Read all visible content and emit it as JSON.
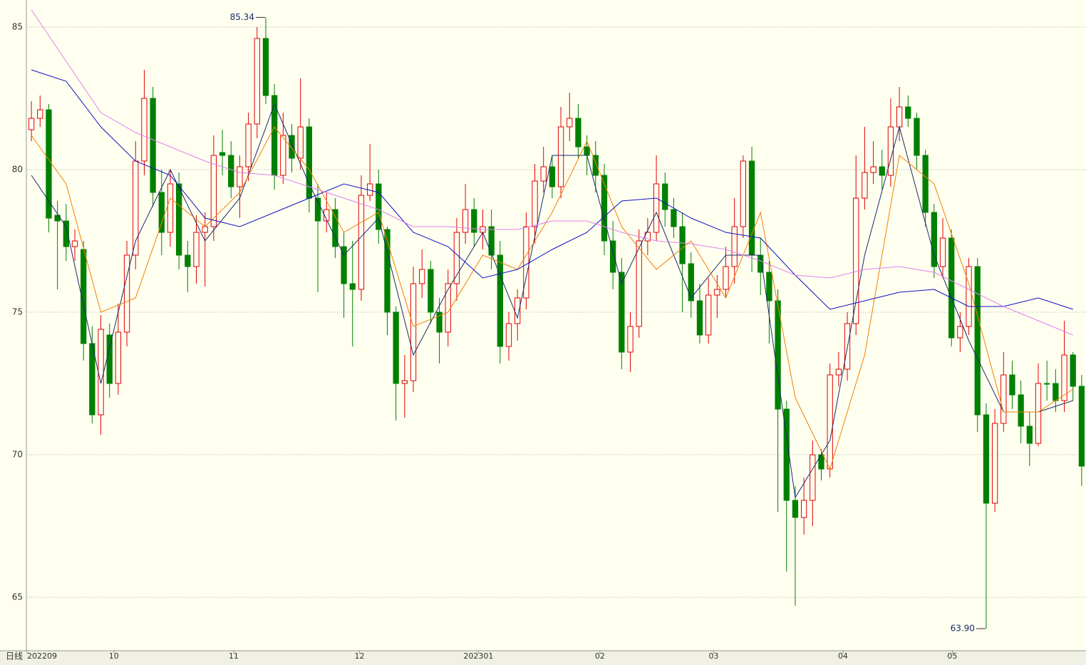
{
  "chart_data": {
    "type": "candlestick",
    "period_label": "日线",
    "open": [
      81.4,
      81.8,
      82.1,
      78.4,
      78.2,
      77.3,
      77.2,
      73.9,
      71.4,
      74.2,
      72.5,
      74.3,
      77.0,
      80.3,
      82.5,
      79.2,
      77.8,
      79.5,
      77.0,
      76.6,
      77.8,
      78.0,
      80.6,
      80.5,
      79.4,
      80.1,
      81.6,
      84.6,
      82.6,
      79.8,
      81.2,
      80.4,
      81.5,
      79.0,
      78.2,
      78.6,
      77.3,
      76.0,
      75.8,
      79.1,
      79.5,
      77.9,
      75.0,
      72.5,
      72.6,
      76.0,
      76.5,
      75.0,
      74.3,
      76.0,
      77.8,
      78.6,
      77.8,
      78.0,
      77.0,
      73.8,
      74.6,
      75.5,
      78.0,
      79.6,
      80.1,
      79.4,
      81.5,
      81.8,
      80.8,
      80.5,
      79.8,
      77.5,
      76.4,
      73.6,
      74.5,
      77.5,
      77.8,
      79.5,
      78.6,
      78.0,
      76.7,
      75.4,
      74.2,
      75.6,
      75.8,
      76.6,
      78.0,
      80.3,
      77.0,
      76.4,
      75.4,
      71.6,
      68.4,
      67.8,
      68.4,
      70.0,
      69.5,
      72.8,
      73.0,
      74.6,
      79.0,
      79.9,
      80.1,
      79.8,
      81.5,
      82.2,
      81.8,
      80.5,
      78.5,
      76.6,
      77.6,
      74.1,
      74.5,
      76.6,
      71.4,
      68.3,
      71.1,
      72.8,
      72.1,
      71.0,
      70.4,
      72.5,
      72.5,
      71.9,
      73.5,
      72.4
    ],
    "high": [
      82.4,
      82.6,
      82.3,
      78.9,
      78.8,
      77.9,
      77.5,
      74.5,
      74.9,
      74.6,
      75.3,
      77.5,
      81.0,
      83.5,
      82.9,
      80.0,
      80.0,
      79.9,
      77.5,
      78.4,
      78.5,
      81.2,
      81.4,
      81.0,
      80.5,
      82.0,
      85.0,
      85.34,
      83.0,
      82.0,
      81.6,
      83.2,
      81.8,
      79.5,
      79.2,
      79.0,
      77.8,
      77.5,
      79.8,
      80.9,
      80.0,
      78.0,
      75.2,
      73.5,
      76.6,
      77.2,
      76.8,
      75.5,
      76.5,
      78.3,
      79.5,
      79.0,
      78.6,
      78.6,
      77.5,
      75.0,
      75.8,
      78.5,
      80.2,
      80.8,
      80.5,
      82.2,
      82.7,
      82.3,
      81.2,
      81.0,
      80.2,
      78.2,
      76.9,
      75.0,
      77.9,
      78.3,
      80.5,
      79.9,
      79.0,
      78.5,
      77.1,
      76.0,
      76.2,
      76.3,
      77.3,
      79.0,
      80.5,
      80.8,
      77.6,
      76.8,
      75.8,
      71.9,
      68.9,
      69.2,
      70.5,
      70.2,
      73.2,
      73.6,
      75.0,
      80.5,
      81.5,
      81.0,
      80.7,
      82.5,
      82.9,
      82.6,
      82.0,
      80.7,
      78.8,
      78.3,
      77.9,
      75.0,
      76.9,
      76.9,
      71.8,
      71.6,
      73.6,
      73.3,
      72.6,
      71.5,
      73.2,
      73.3,
      73.0,
      74.7,
      73.6,
      72.8
    ],
    "low": [
      81.0,
      81.5,
      77.8,
      75.8,
      76.8,
      76.8,
      73.3,
      71.1,
      70.7,
      72.0,
      72.1,
      73.8,
      76.5,
      79.8,
      78.7,
      77.0,
      77.3,
      76.5,
      75.7,
      76.0,
      75.9,
      77.5,
      79.8,
      79.0,
      78.3,
      79.6,
      81.1,
      82.3,
      79.3,
      79.5,
      79.9,
      80.0,
      78.5,
      75.7,
      77.8,
      76.9,
      74.8,
      73.8,
      75.4,
      78.9,
      77.4,
      74.2,
      71.2,
      71.3,
      72.2,
      75.5,
      74.6,
      73.2,
      73.8,
      75.4,
      77.4,
      77.3,
      77.2,
      76.5,
      73.2,
      73.3,
      74.0,
      75.1,
      77.4,
      79.2,
      79.0,
      79.0,
      81.0,
      80.4,
      79.8,
      79.2,
      77.0,
      75.8,
      73.0,
      72.9,
      74.1,
      77.0,
      77.5,
      78.0,
      77.6,
      75.0,
      74.8,
      73.9,
      73.9,
      74.8,
      75.5,
      76.0,
      77.6,
      76.4,
      75.6,
      73.9,
      68.0,
      65.9,
      64.7,
      67.2,
      67.5,
      69.1,
      69.2,
      72.4,
      72.6,
      74.2,
      78.6,
      79.5,
      79.3,
      79.4,
      81.0,
      81.5,
      80.0,
      78.0,
      76.2,
      76.2,
      73.8,
      73.6,
      74.2,
      70.8,
      63.9,
      68.0,
      70.8,
      71.6,
      70.4,
      69.6,
      70.3,
      71.9,
      71.5,
      71.5,
      71.9,
      68.9
    ],
    "close": [
      81.8,
      82.1,
      78.3,
      78.2,
      77.3,
      77.5,
      73.9,
      71.4,
      74.4,
      72.5,
      74.3,
      77.0,
      80.3,
      82.5,
      79.2,
      77.8,
      79.5,
      77.0,
      76.6,
      77.8,
      78.0,
      80.5,
      80.5,
      79.4,
      80.1,
      81.6,
      84.6,
      82.6,
      79.8,
      81.2,
      80.4,
      81.5,
      79.0,
      78.2,
      78.6,
      77.3,
      76.0,
      75.8,
      79.1,
      79.5,
      77.9,
      75.0,
      72.5,
      72.6,
      76.0,
      76.5,
      75.0,
      74.3,
      76.0,
      77.8,
      78.6,
      77.8,
      78.0,
      77.0,
      73.8,
      74.6,
      75.5,
      78.0,
      79.6,
      80.1,
      79.4,
      81.5,
      81.8,
      80.8,
      80.5,
      79.8,
      77.5,
      76.4,
      73.6,
      74.5,
      77.5,
      77.8,
      79.5,
      78.6,
      78.0,
      76.7,
      75.4,
      74.2,
      75.6,
      75.8,
      76.6,
      78.0,
      80.3,
      77.0,
      76.4,
      75.4,
      71.6,
      68.4,
      67.8,
      68.4,
      70.0,
      69.5,
      72.8,
      73.0,
      74.6,
      79.0,
      79.9,
      80.1,
      79.8,
      81.5,
      82.2,
      81.8,
      80.5,
      78.5,
      76.6,
      77.6,
      74.1,
      74.5,
      76.6,
      71.4,
      68.3,
      71.1,
      72.8,
      72.1,
      71.0,
      70.4,
      72.5,
      72.5,
      71.9,
      73.5,
      72.4,
      69.6
    ],
    "up_color": "#e00000",
    "down_color": "#008000",
    "ma_x": [
      0,
      4,
      8,
      12,
      16,
      20,
      24,
      28,
      32,
      36,
      40,
      44,
      48,
      52,
      56,
      60,
      64,
      68,
      72,
      76,
      80,
      84,
      88,
      92,
      96,
      100,
      104,
      108,
      112,
      116,
      120
    ],
    "series": [
      {
        "color": "#1a2a6c",
        "values": [
          79.8,
          78.0,
          72.5,
          77.5,
          80.0,
          77.5,
          79.0,
          82.3,
          79.5,
          77.0,
          78.3,
          73.5,
          75.8,
          77.8,
          74.8,
          80.5,
          80.5,
          76.0,
          78.5,
          75.5,
          77.0,
          77.0,
          68.5,
          70.5,
          77.0,
          81.5,
          77.0,
          74.0,
          71.5,
          71.5,
          71.9
        ]
      },
      {
        "color": "#f08000",
        "values": [
          81.2,
          79.5,
          75.0,
          75.5,
          79.0,
          78.0,
          79.2,
          81.5,
          80.0,
          77.8,
          78.5,
          74.5,
          75.0,
          77.0,
          76.5,
          78.5,
          81.0,
          78.0,
          76.5,
          77.5,
          75.5,
          78.5,
          72.0,
          69.5,
          73.5,
          80.5,
          79.5,
          76.0,
          71.5,
          71.5,
          72.3
        ]
      },
      {
        "color": "#1010c0",
        "values": [
          83.5,
          83.1,
          81.5,
          80.3,
          79.8,
          78.3,
          78.0,
          78.5,
          79.0,
          79.5,
          79.2,
          77.8,
          77.3,
          76.2,
          76.5,
          77.2,
          77.8,
          78.9,
          79.0,
          78.3,
          77.8,
          77.6,
          76.3,
          75.1,
          75.4,
          75.7,
          75.8,
          75.2,
          75.2,
          75.5,
          75.1
        ]
      },
      {
        "color": "#e080f0",
        "values": [
          85.6,
          83.8,
          82.0,
          81.3,
          80.8,
          80.3,
          79.9,
          79.8,
          79.4,
          79.0,
          78.6,
          78.0,
          78.0,
          77.9,
          77.9,
          78.2,
          78.2,
          77.8,
          77.5,
          77.4,
          77.2,
          76.8,
          76.3,
          76.2,
          76.5,
          76.6,
          76.4,
          75.8,
          75.2,
          74.7,
          74.2
        ]
      }
    ],
    "annotations": [
      {
        "value": 85.34,
        "label": "85.34"
      },
      {
        "value": 63.9,
        "label": "63.90"
      }
    ],
    "xlim": [
      0,
      122
    ],
    "xticks": [
      {
        "value": 0,
        "label": "202209"
      },
      {
        "value": 10.0,
        "label": "10"
      },
      {
        "value": 23.8,
        "label": "11"
      },
      {
        "value": 38.3,
        "label": "12"
      },
      {
        "value": 52.0,
        "label": "202301"
      },
      {
        "value": 66.0,
        "label": "02"
      },
      {
        "value": 79.1,
        "label": "03"
      },
      {
        "value": 94.0,
        "label": "04"
      },
      {
        "value": 106.6,
        "label": "05"
      }
    ],
    "ylim": [
      63.15,
      85.95
    ],
    "yticks": [
      65,
      70,
      75,
      80,
      85
    ],
    "grid": true
  }
}
